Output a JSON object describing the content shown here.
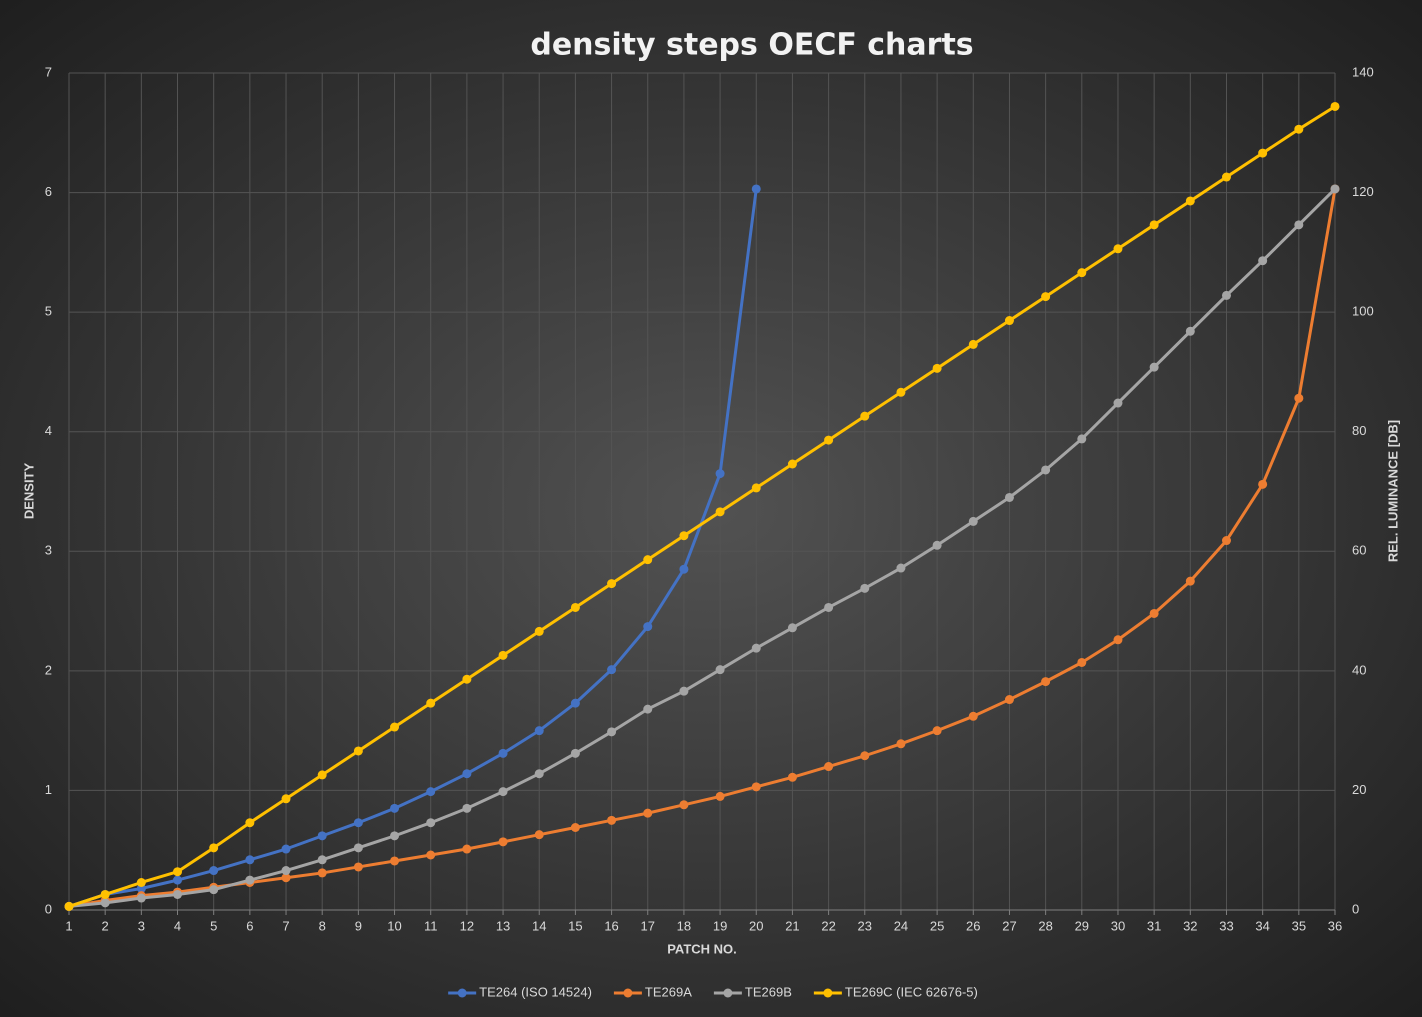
{
  "chart_data": {
    "type": "line",
    "title": "density steps OECF charts",
    "x_label": "PATCH NO.",
    "y_label": "DENSITY",
    "y2_label": "REL. LUMINANCE [DB]",
    "x": [
      1,
      2,
      3,
      4,
      5,
      6,
      7,
      8,
      9,
      10,
      11,
      12,
      13,
      14,
      15,
      16,
      17,
      18,
      19,
      20,
      21,
      22,
      23,
      24,
      25,
      26,
      27,
      28,
      29,
      30,
      31,
      32,
      33,
      34,
      35,
      36
    ],
    "xlim": [
      1,
      36
    ],
    "xticks": [
      1,
      2,
      3,
      4,
      5,
      6,
      7,
      8,
      9,
      10,
      11,
      12,
      13,
      14,
      15,
      16,
      17,
      18,
      19,
      20,
      21,
      22,
      23,
      24,
      25,
      26,
      27,
      28,
      29,
      30,
      31,
      32,
      33,
      34,
      35,
      36
    ],
    "ylim": [
      0,
      7
    ],
    "yticks": [
      0,
      1,
      2,
      3,
      4,
      5,
      6,
      7
    ],
    "y2lim": [
      0,
      140
    ],
    "y2ticks": [
      0,
      20,
      40,
      60,
      80,
      100,
      120,
      140
    ],
    "grid": true,
    "legend": "bottom",
    "series": [
      {
        "name": "TE264 (ISO 14524)",
        "color": "#4472c4",
        "values": [
          0.03,
          0.13,
          0.18,
          0.25,
          0.33,
          0.42,
          0.51,
          0.62,
          0.73,
          0.85,
          0.99,
          1.14,
          1.31,
          1.5,
          1.73,
          2.01,
          2.37,
          2.85,
          3.65,
          6.03,
          null,
          null,
          null,
          null,
          null,
          null,
          null,
          null,
          null,
          null,
          null,
          null,
          null,
          null,
          null,
          null
        ]
      },
      {
        "name": "TE269A",
        "color": "#ed7d31",
        "values": [
          0.03,
          0.08,
          0.12,
          0.15,
          0.19,
          0.23,
          0.27,
          0.31,
          0.36,
          0.41,
          0.46,
          0.51,
          0.57,
          0.63,
          0.69,
          0.75,
          0.81,
          0.88,
          0.95,
          1.03,
          1.11,
          1.2,
          1.29,
          1.39,
          1.5,
          1.62,
          1.76,
          1.91,
          2.07,
          2.26,
          2.48,
          2.75,
          3.09,
          3.56,
          4.28,
          6.03
        ]
      },
      {
        "name": "TE269B",
        "color": "#a5a5a5",
        "values": [
          0.03,
          0.06,
          0.1,
          0.13,
          0.17,
          0.25,
          0.33,
          0.42,
          0.52,
          0.62,
          0.73,
          0.85,
          0.99,
          1.14,
          1.31,
          1.49,
          1.68,
          1.83,
          2.01,
          2.19,
          2.36,
          2.53,
          2.69,
          2.86,
          3.05,
          3.25,
          3.45,
          3.68,
          3.94,
          4.24,
          4.54,
          4.84,
          5.14,
          5.43,
          5.73,
          6.03
        ]
      },
      {
        "name": "TE269C (IEC 62676-5)",
        "color": "#ffc000",
        "axis": "y2",
        "values": [
          0.6,
          2.6,
          4.6,
          6.4,
          10.4,
          14.6,
          18.6,
          22.6,
          26.6,
          30.6,
          34.6,
          38.6,
          42.6,
          46.6,
          50.6,
          54.6,
          58.6,
          62.6,
          66.6,
          70.6,
          74.6,
          78.6,
          82.6,
          86.6,
          90.6,
          94.6,
          98.6,
          102.6,
          106.6,
          110.6,
          114.6,
          118.6,
          122.6,
          126.6,
          130.6,
          134.4
        ]
      }
    ]
  }
}
